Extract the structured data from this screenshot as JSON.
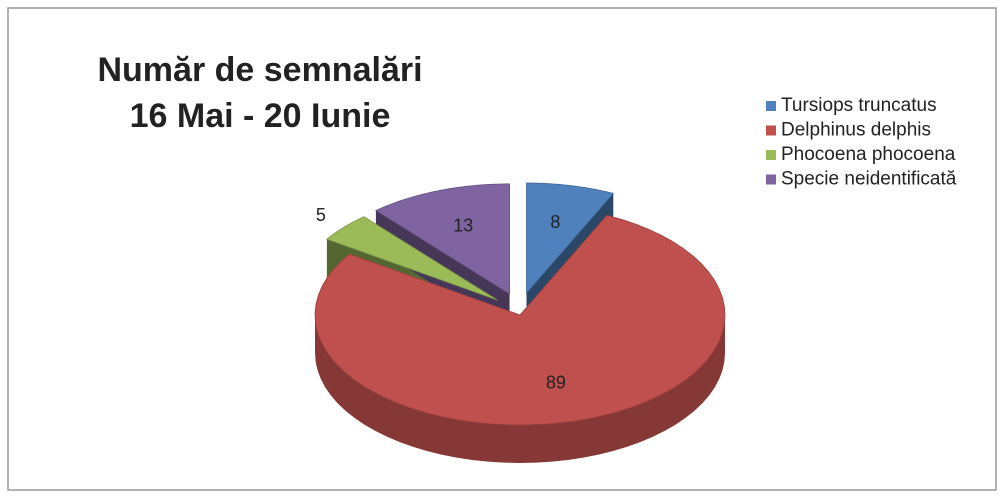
{
  "chart_data": {
    "type": "pie",
    "title": "Număr de semnalări",
    "subtitle": "16 Mai  - 20 Iunie",
    "categories": [
      "Tursiops truncatus",
      "Delphinus delphis",
      "Phocoena phocoena",
      "Specie neidentificată"
    ],
    "values": [
      8,
      89,
      5,
      13
    ],
    "colors": [
      "#4f81bd",
      "#c0504d",
      "#9bbb59",
      "#8064a2"
    ],
    "legend": "right"
  }
}
